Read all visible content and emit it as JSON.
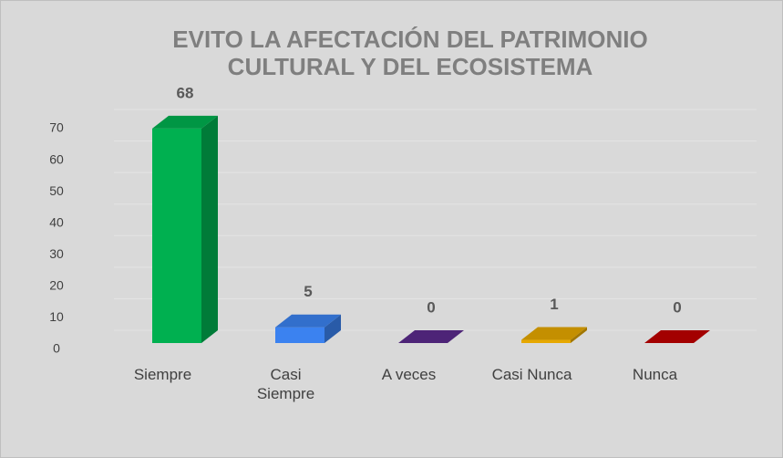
{
  "chart_data": {
    "type": "bar3d",
    "title": "EVITO LA AFECTACIÓN DEL PATRIMONIO CULTURAL Y DEL ECOSISTEMA",
    "categories": [
      "Siempre",
      "Casi Siempre",
      "A veces",
      "Casi Nunca",
      "Nunca"
    ],
    "values": [
      68,
      5,
      0,
      1,
      0
    ],
    "colors": [
      "#00b050",
      "#3b82f0",
      "#5b2a8c",
      "#e6a800",
      "#c00000"
    ],
    "ylim": [
      0,
      70
    ],
    "yticks": [
      0,
      10,
      20,
      30,
      40,
      50,
      60,
      70
    ],
    "grid": true
  }
}
